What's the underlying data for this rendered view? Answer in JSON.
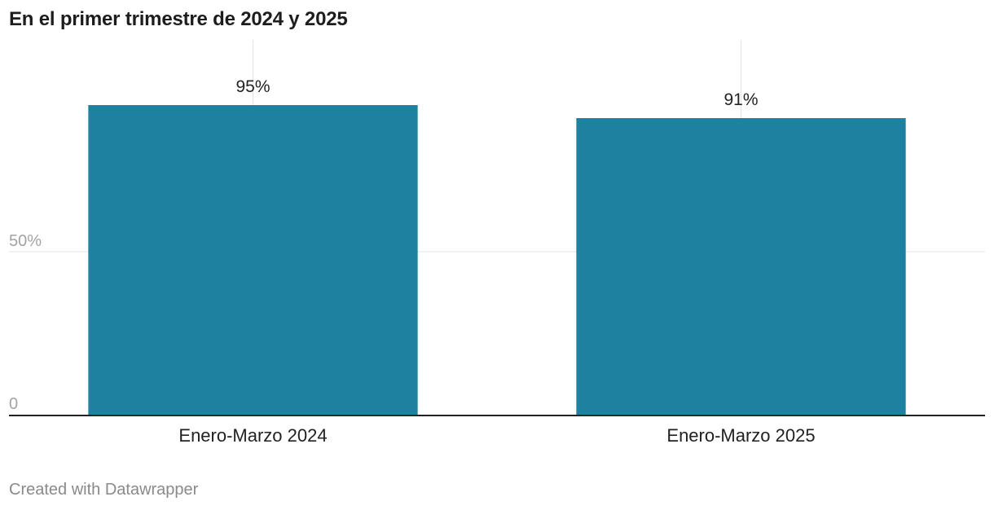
{
  "title": "En el primer trimestre de 2024 y 2025",
  "footer": "Created with Datawrapper",
  "chart_data": {
    "type": "bar",
    "categories": [
      "Enero-Marzo 2024",
      "Enero-Marzo 2025"
    ],
    "values": [
      95,
      91
    ],
    "value_labels": [
      "95%",
      "91%"
    ],
    "ylim": [
      0,
      100
    ],
    "y_ticks": [
      {
        "value": 0,
        "label": "0"
      },
      {
        "value": 50,
        "label": "50%"
      }
    ],
    "grid": true,
    "colors": {
      "bar": "#1f81a0",
      "grid": "#e3e3e3",
      "axis": "#222222"
    }
  }
}
